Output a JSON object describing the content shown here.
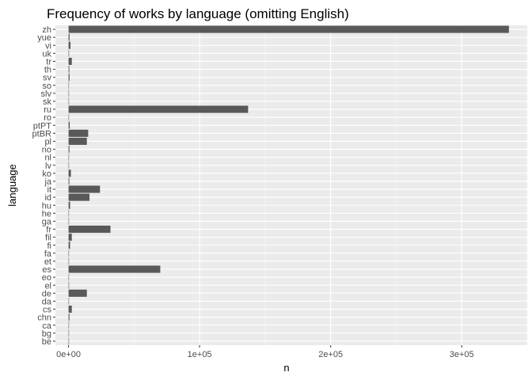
{
  "chart_data": {
    "type": "bar",
    "orientation": "horizontal",
    "title": "Frequency of works by language (omitting English)",
    "xlabel": "n",
    "ylabel": "language",
    "xlim": [
      -10000,
      350000
    ],
    "xticks": [
      0,
      100000,
      200000,
      300000
    ],
    "xtick_labels": [
      "0e+00",
      "1e+05",
      "2e+05",
      "3e+05"
    ],
    "grid": true,
    "legend": "none",
    "bar_color": "#595959",
    "panel_color": "#ebebeb",
    "categories": [
      "be",
      "bg",
      "ca",
      "chn",
      "cs",
      "da",
      "de",
      "el",
      "eo",
      "es",
      "et",
      "fa",
      "fi",
      "fil",
      "fr",
      "ga",
      "he",
      "hu",
      "id",
      "it",
      "ja",
      "ko",
      "lv",
      "nl",
      "no",
      "pl",
      "ptBR",
      "ptPT",
      "ro",
      "ru",
      "sk",
      "slv",
      "so",
      "sv",
      "th",
      "tr",
      "uk",
      "vi",
      "yue",
      "zh"
    ],
    "values": [
      60,
      120,
      100,
      700,
      2500,
      150,
      14000,
      400,
      200,
      70000,
      100,
      250,
      1200,
      2500,
      32000,
      80,
      200,
      1200,
      16000,
      24000,
      600,
      1800,
      60,
      250,
      700,
      14000,
      15000,
      900,
      300,
      137000,
      80,
      50,
      40,
      800,
      600,
      2500,
      400,
      1500,
      800,
      336000
    ]
  }
}
